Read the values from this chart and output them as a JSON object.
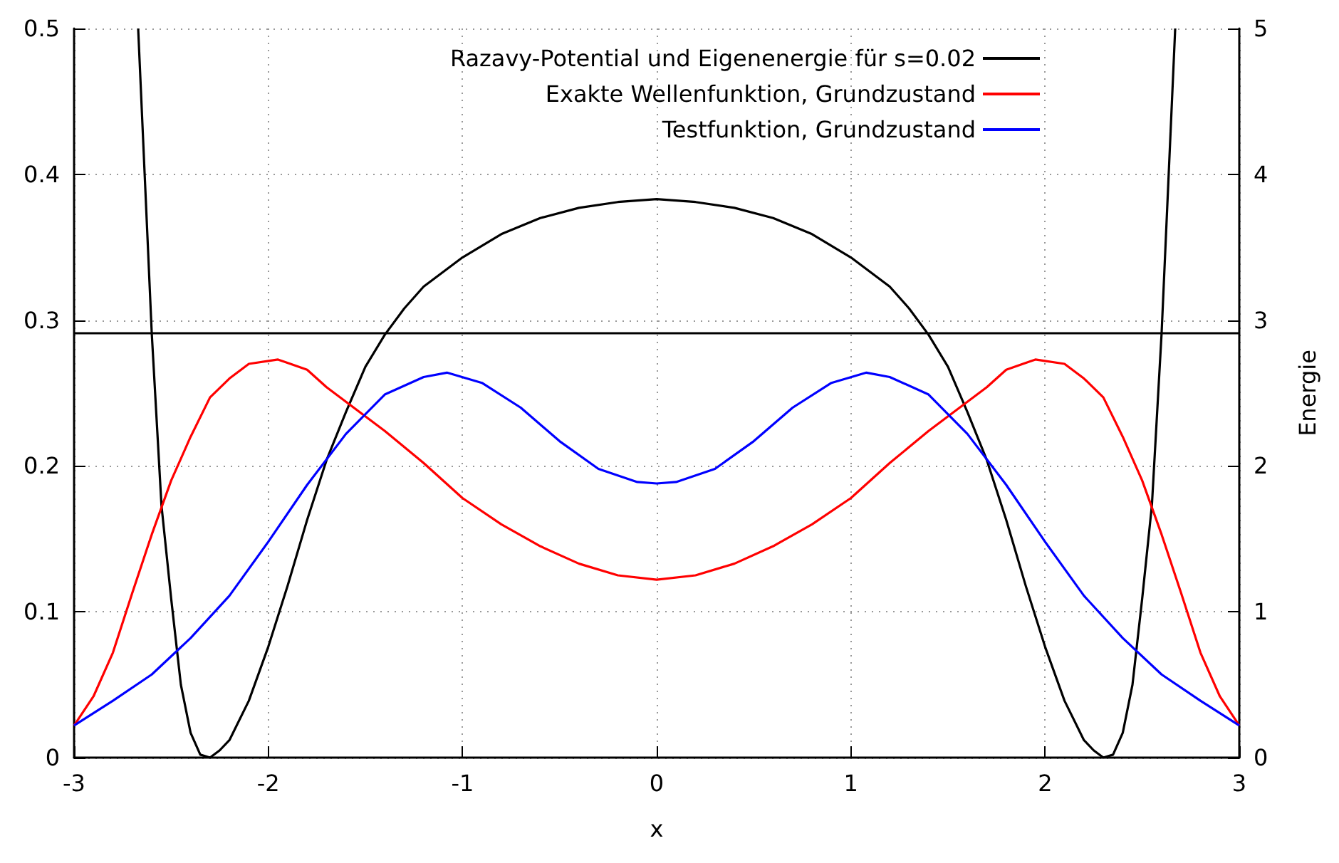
{
  "chart_data": {
    "type": "line",
    "xlabel": "x",
    "y2label": "Energie",
    "xlim": [
      -3,
      3
    ],
    "xticks": [
      -3,
      -2,
      -1,
      0,
      1,
      2,
      3
    ],
    "ylim": [
      0,
      0.5
    ],
    "yticks": [
      0,
      0.1,
      0.2,
      0.3,
      0.4,
      0.5
    ],
    "y2lim": [
      0,
      5
    ],
    "y2ticks": [
      0,
      1,
      2,
      3,
      4,
      5
    ],
    "grid": true,
    "legend": "top right",
    "marker": "none",
    "line_style": "solid",
    "series": [
      {
        "name": "Razavy-Potential und Eigenenergie für s=0.02",
        "color": "#000000",
        "axis": "y2",
        "x": [
          -2.67,
          -2.6,
          -2.55,
          -2.5,
          -2.45,
          -2.4,
          -2.35,
          -2.3,
          -2.25,
          -2.2,
          -2.1,
          -2.0,
          -1.9,
          -1.8,
          -1.7,
          -1.6,
          -1.5,
          -1.4,
          -1.3,
          -1.2,
          -1.0,
          -0.8,
          -0.6,
          -0.4,
          -0.2,
          0,
          0.2,
          0.4,
          0.6,
          0.8,
          1.0,
          1.2,
          1.3,
          1.4,
          1.5,
          1.6,
          1.7,
          1.8,
          1.9,
          2.0,
          2.1,
          2.2,
          2.25,
          2.3,
          2.35,
          2.4,
          2.45,
          2.5,
          2.55,
          2.6,
          2.67
        ],
        "values": [
          5.0,
          2.91,
          1.73,
          1.09,
          0.5,
          0.17,
          0.02,
          0.0,
          0.05,
          0.12,
          0.39,
          0.76,
          1.18,
          1.63,
          2.04,
          2.37,
          2.68,
          2.9,
          3.08,
          3.23,
          3.43,
          3.59,
          3.7,
          3.77,
          3.81,
          3.83,
          3.81,
          3.77,
          3.7,
          3.59,
          3.43,
          3.23,
          3.08,
          2.9,
          2.68,
          2.37,
          2.04,
          1.63,
          1.18,
          0.76,
          0.39,
          0.12,
          0.05,
          0.0,
          0.02,
          0.17,
          0.5,
          1.09,
          1.73,
          2.91,
          5.0
        ]
      },
      {
        "name": "Exakte Wellenfunktion, Grundzustand",
        "color": "#ff0000",
        "x": [
          -3,
          -2.9,
          -2.8,
          -2.7,
          -2.6,
          -2.5,
          -2.4,
          -2.3,
          -2.2,
          -2.1,
          -1.95,
          -1.8,
          -1.7,
          -1.6,
          -1.5,
          -1.4,
          -1.3,
          -1.2,
          -1.0,
          -0.8,
          -0.6,
          -0.4,
          -0.2,
          0,
          0.2,
          0.4,
          0.6,
          0.8,
          1.0,
          1.2,
          1.3,
          1.4,
          1.5,
          1.6,
          1.7,
          1.8,
          1.95,
          2.1,
          2.2,
          2.3,
          2.4,
          2.5,
          2.6,
          2.7,
          2.8,
          2.9,
          3
        ],
        "values": [
          0.022,
          0.042,
          0.072,
          0.113,
          0.153,
          0.19,
          0.22,
          0.247,
          0.26,
          0.27,
          0.273,
          0.266,
          0.254,
          0.244,
          0.234,
          0.224,
          0.213,
          0.202,
          0.178,
          0.16,
          0.145,
          0.133,
          0.125,
          0.122,
          0.125,
          0.133,
          0.145,
          0.16,
          0.178,
          0.202,
          0.213,
          0.224,
          0.234,
          0.244,
          0.254,
          0.266,
          0.273,
          0.27,
          0.26,
          0.247,
          0.22,
          0.19,
          0.153,
          0.113,
          0.072,
          0.042,
          0.022
        ]
      },
      {
        "name": "Testfunktion, Grundzustand",
        "color": "#0000ff",
        "x": [
          -3,
          -2.8,
          -2.6,
          -2.4,
          -2.2,
          -2.0,
          -1.8,
          -1.6,
          -1.4,
          -1.2,
          -1.08,
          -0.9,
          -0.7,
          -0.5,
          -0.3,
          -0.1,
          0,
          0.1,
          0.3,
          0.5,
          0.7,
          0.9,
          1.08,
          1.2,
          1.4,
          1.6,
          1.8,
          2.0,
          2.2,
          2.4,
          2.6,
          2.8,
          3
        ],
        "values": [
          0.022,
          0.039,
          0.057,
          0.082,
          0.111,
          0.148,
          0.187,
          0.222,
          0.249,
          0.261,
          0.264,
          0.257,
          0.24,
          0.217,
          0.198,
          0.189,
          0.188,
          0.189,
          0.198,
          0.217,
          0.24,
          0.257,
          0.264,
          0.261,
          0.249,
          0.222,
          0.187,
          0.148,
          0.111,
          0.082,
          0.057,
          0.039,
          0.022
        ]
      }
    ],
    "ref_lines": [
      {
        "axis": "y2",
        "value": 2.91,
        "color": "#000000"
      }
    ]
  }
}
